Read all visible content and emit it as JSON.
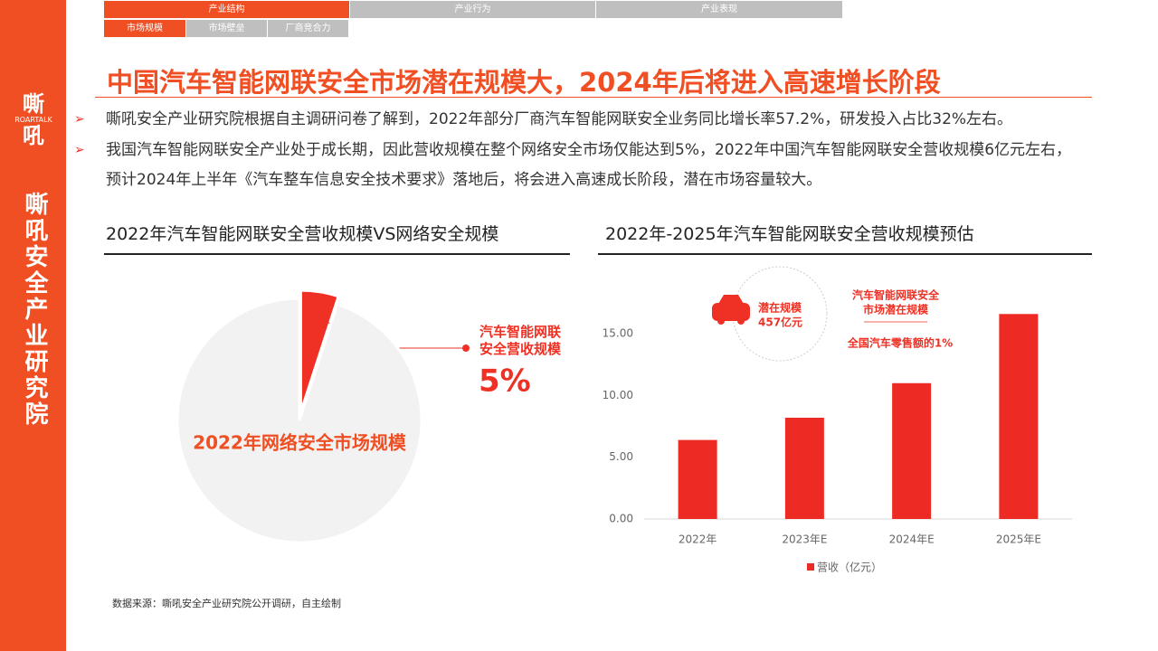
{
  "nav": {
    "tabs": [
      "产业结构",
      "产业行为",
      "产业表现"
    ],
    "subtabs": [
      "市场规模",
      "市场壁垒",
      "厂商竞合力"
    ]
  },
  "sidebar": {
    "logo": "嘶吼",
    "logo_en": "ROARTALK",
    "name": "嘶吼安全产业研究院"
  },
  "title": "中国汽车智能网联安全市场潜在规模大，2024年后将进入高速增长阶段",
  "bullets": [
    "嘶吼安全产业研究院根据自主调研问卷了解到，2022年部分厂商汽车智能网联安全业务同比增长率57.2%，研发投入占比32%左右。",
    "我国汽车智能网联安全产业处于成长期，因此营收规模在整个网络安全市场仅能达到5%，2022年中国汽车智能网联安全营收规模6亿元左右，预计2024年上半年《汽车整车信息安全技术要求》落地后，将会进入高速成长阶段，潜在市场容量较大。"
  ],
  "source": "数据来源：嘶吼安全产业研究院公开调研，自主绘制",
  "chart_data": [
    {
      "type": "pie",
      "title": "2022年汽车智能网联安全营收规模VS网络安全规模",
      "categories": [
        "汽车智能网联安全营收规模",
        "2022年网络安全市场规模"
      ],
      "values": [
        5,
        95
      ],
      "value_labels": [
        "5%",
        null
      ],
      "colors": [
        "#ee3124",
        "#f2f2f2"
      ]
    },
    {
      "type": "bar",
      "title": "2022年-2025年汽车智能网联安全营收规模预估",
      "categories": [
        "2022年",
        "2023年E",
        "2024年E",
        "2025年E"
      ],
      "series": [
        {
          "name": "营收（亿元）",
          "color": "#ee2a24",
          "values": [
            6.4,
            8.2,
            11.0,
            16.6
          ]
        }
      ],
      "ylim": [
        0,
        17.5
      ],
      "yticks": [
        {
          "value": 0,
          "label": "0.00"
        },
        {
          "value": 5,
          "label": "5.00"
        },
        {
          "value": 10,
          "label": "10.00"
        },
        {
          "value": 15,
          "label": "15.00"
        }
      ],
      "annotations": [
        "潜在规模",
        "457亿元",
        "汽车智能网联安全",
        "市场潜在规模",
        "全国汽车零售额的1%"
      ]
    }
  ]
}
